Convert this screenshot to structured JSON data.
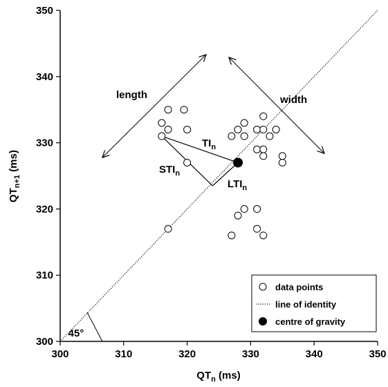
{
  "chart_data": {
    "type": "scatter",
    "xlabel": "QT",
    "xlabel_sub": "n",
    "xlabel_unit": " (ms)",
    "ylabel": "QT",
    "ylabel_sub": "n+1",
    "ylabel_unit": " (ms)",
    "xlim": [
      300,
      350
    ],
    "ylim": [
      300,
      350
    ],
    "xticks": [
      300,
      310,
      320,
      330,
      340,
      350
    ],
    "yticks": [
      300,
      310,
      320,
      330,
      340,
      350
    ],
    "grid": false,
    "series": [
      {
        "name": "data points",
        "marker": "open-circle",
        "points": [
          [
            316,
            331
          ],
          [
            316,
            333
          ],
          [
            317,
            335
          ],
          [
            317,
            332
          ],
          [
            319.5,
            335
          ],
          [
            320,
            332
          ],
          [
            320,
            327
          ],
          [
            317,
            317
          ],
          [
            327,
            331
          ],
          [
            328,
            332
          ],
          [
            329,
            333
          ],
          [
            329,
            331
          ],
          [
            331,
            332
          ],
          [
            332,
            332
          ],
          [
            332,
            334
          ],
          [
            333,
            331
          ],
          [
            334,
            332
          ],
          [
            331,
            329
          ],
          [
            332,
            329
          ],
          [
            332,
            328
          ],
          [
            335,
            328
          ],
          [
            335,
            327
          ],
          [
            327,
            316
          ],
          [
            328,
            319
          ],
          [
            329,
            320
          ],
          [
            331,
            320
          ],
          [
            331,
            317
          ],
          [
            332,
            316
          ]
        ]
      },
      {
        "name": "line of identity",
        "style": "dotted",
        "line": [
          [
            300,
            300
          ],
          [
            350,
            350
          ]
        ]
      },
      {
        "name": "centre of gravity",
        "marker": "filled-circle",
        "points": [
          [
            328,
            327
          ]
        ]
      }
    ],
    "legend": {
      "position": "bottom-right",
      "entries": [
        "data points",
        "line of identity",
        "centre of gravity"
      ]
    },
    "annotations": {
      "length": "length",
      "width": "width",
      "ti": "TI",
      "sti": "STI",
      "lti": "LTI",
      "sub_n": "n",
      "angle": "45°"
    },
    "geometry_points": {
      "selected_point": [
        316,
        331
      ],
      "centroid": [
        328,
        327
      ],
      "foot": [
        324,
        323.5
      ]
    }
  }
}
